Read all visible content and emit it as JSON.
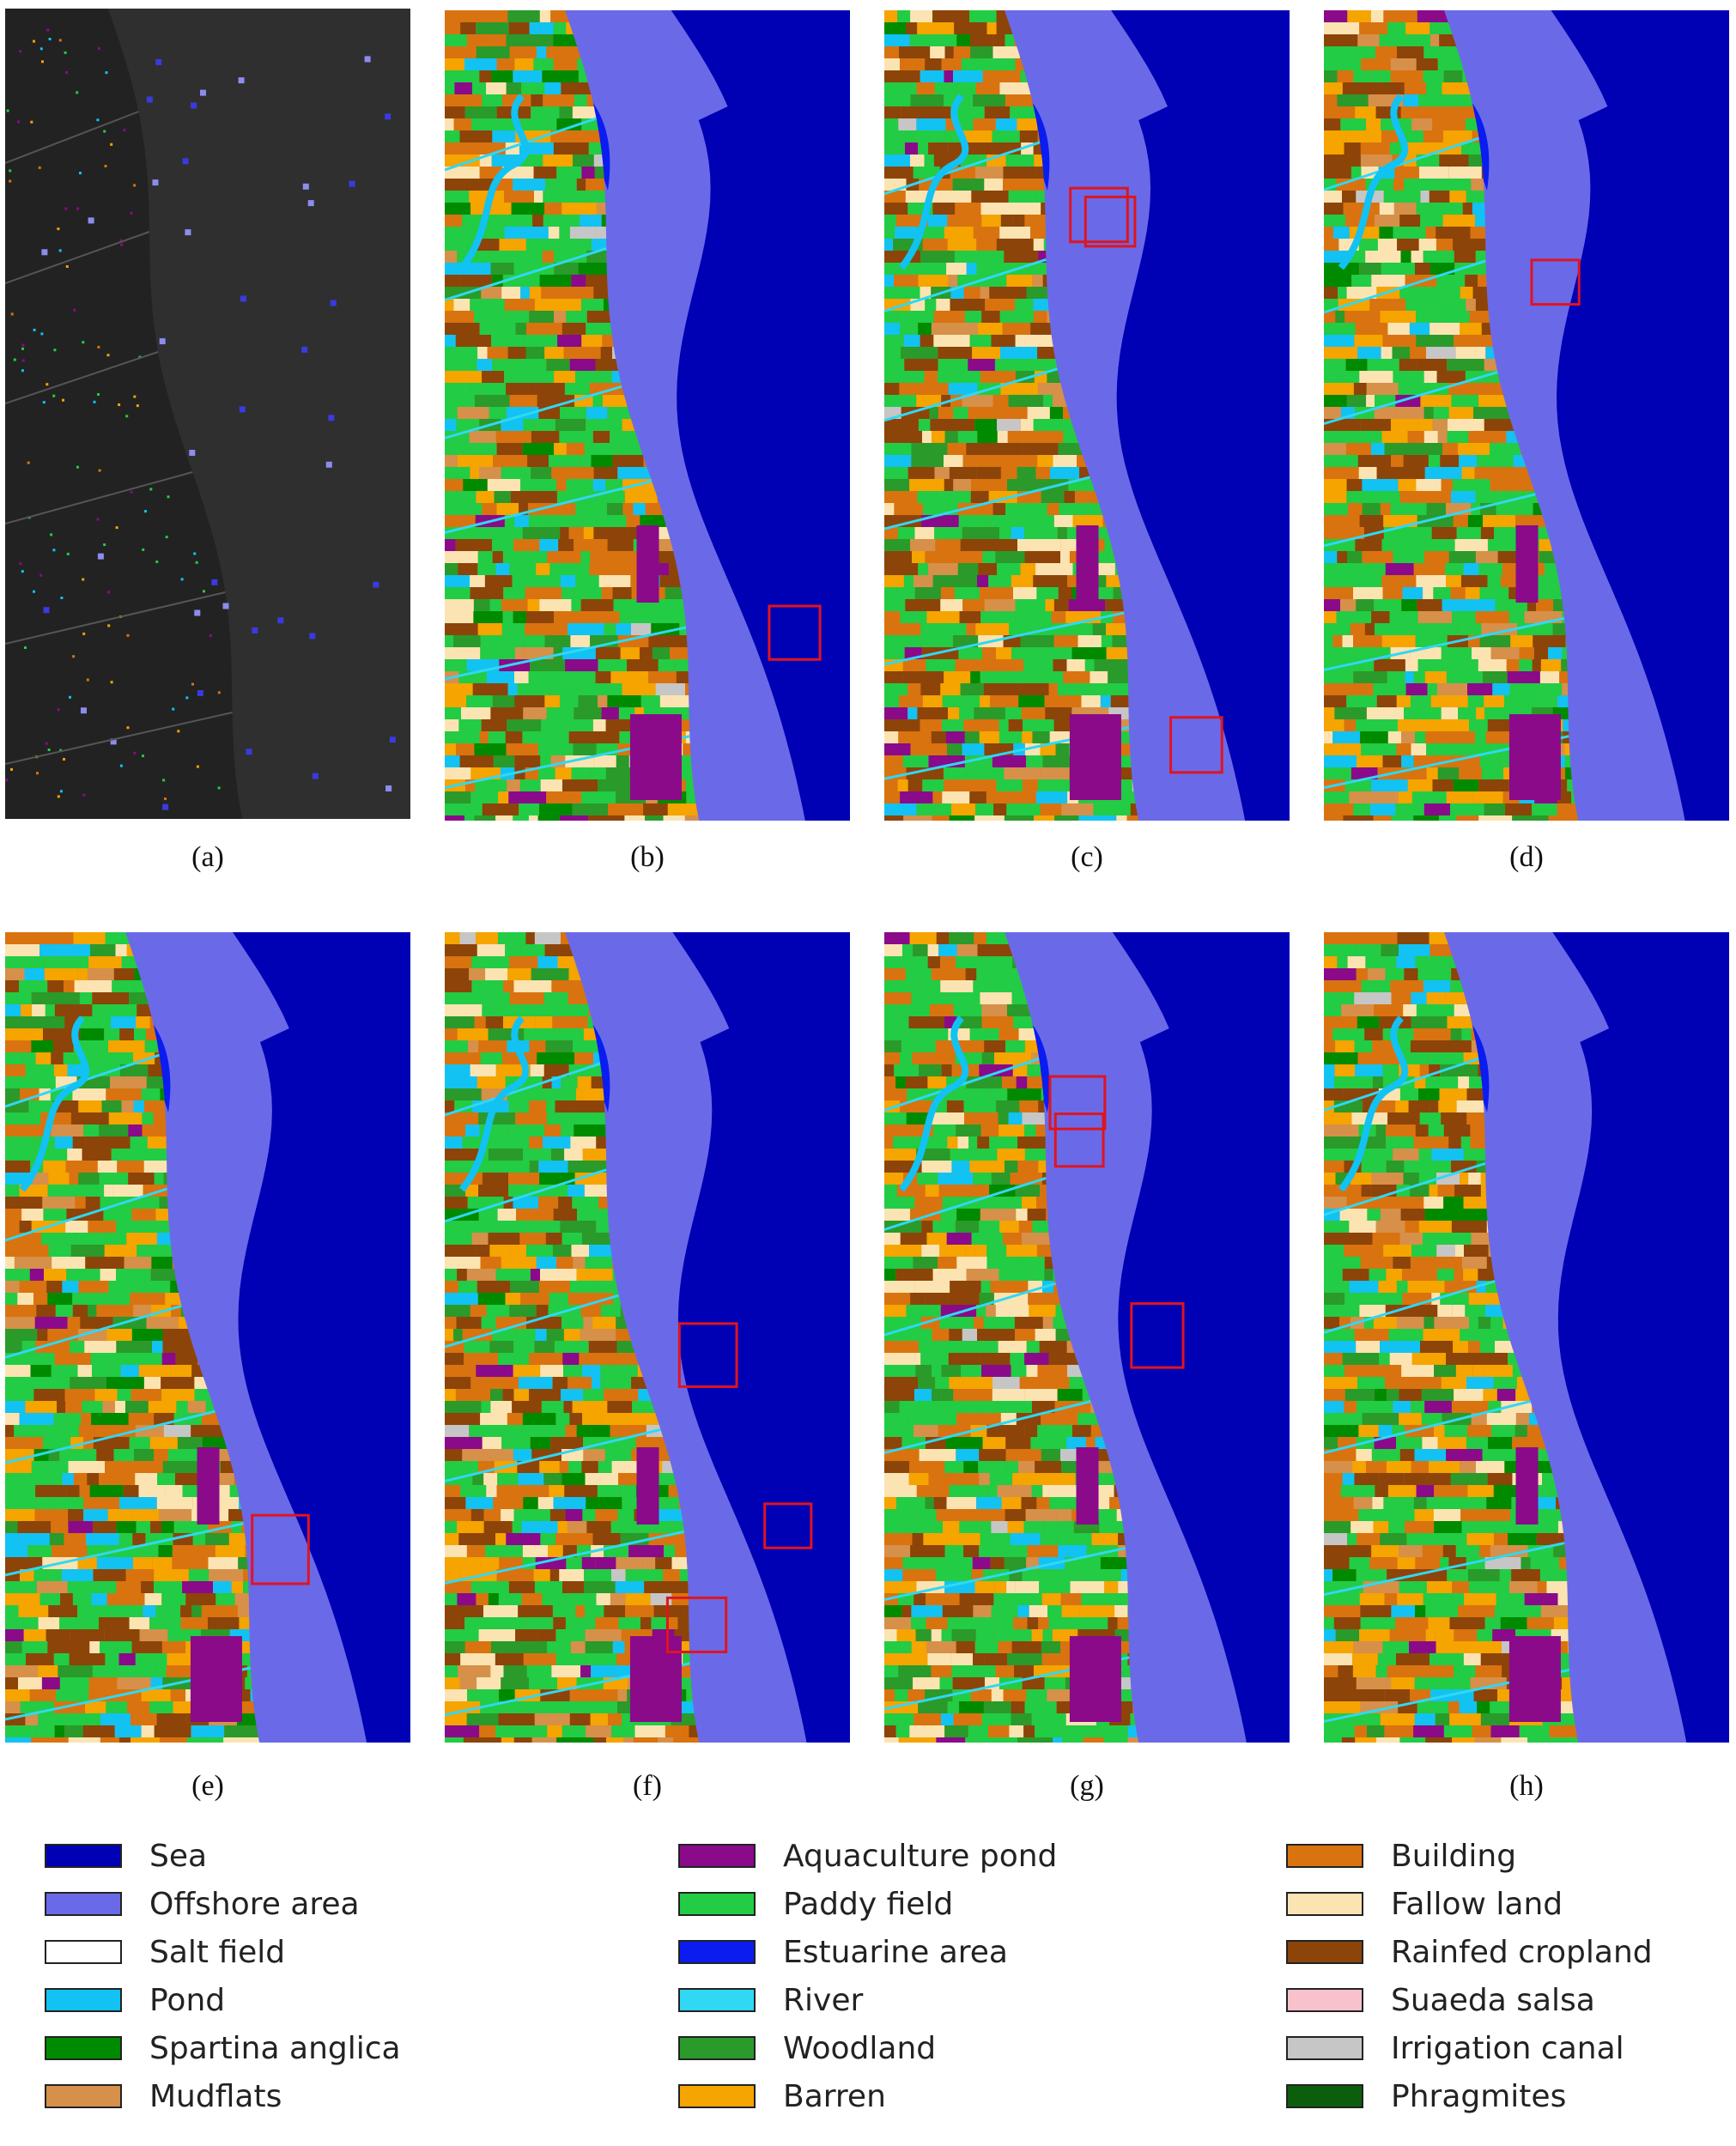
{
  "figure": {
    "panels": [
      {
        "id": "a",
        "caption": "(a)",
        "kind": "sample"
      },
      {
        "id": "b",
        "caption": "(b)",
        "kind": "map"
      },
      {
        "id": "c",
        "caption": "(c)",
        "kind": "map"
      },
      {
        "id": "d",
        "caption": "(d)",
        "kind": "map"
      },
      {
        "id": "e",
        "caption": "(e)",
        "kind": "map"
      },
      {
        "id": "f",
        "caption": "(f)",
        "kind": "map"
      },
      {
        "id": "g",
        "caption": "(g)",
        "kind": "map"
      },
      {
        "id": "h",
        "caption": "(h)",
        "kind": "map"
      }
    ]
  },
  "legend": {
    "columns": [
      [
        {
          "label": "Sea",
          "color": "#0000b4"
        },
        {
          "label": "Offshore area",
          "color": "#6a6ae8"
        },
        {
          "label": "Salt field",
          "color": "#ffffff"
        },
        {
          "label": "Pond",
          "color": "#12c2f2"
        },
        {
          "label": "Spartina anglica",
          "color": "#008a00"
        },
        {
          "label": "Mudflats",
          "color": "#d6904a"
        }
      ],
      [
        {
          "label": "Aquaculture pond",
          "color": "#8a0a8a"
        },
        {
          "label": "Paddy field",
          "color": "#22cc44"
        },
        {
          "label": "Estuarine area",
          "color": "#0a1cf0"
        },
        {
          "label": "River",
          "color": "#30d8f4"
        },
        {
          "label": "Woodland",
          "color": "#2a9a2a"
        },
        {
          "label": "Barren",
          "color": "#f5a400"
        }
      ],
      [
        {
          "label": "Building",
          "color": "#d9730f"
        },
        {
          "label": "Fallow land",
          "color": "#fbe4b2"
        },
        {
          "label": "Rainfed cropland",
          "color": "#8c4409"
        },
        {
          "label": "Suaeda salsa",
          "color": "#f8c2cc"
        },
        {
          "label": "Irrigation canal",
          "color": "#c6c6c6"
        },
        {
          "label": "Phragmites",
          "color": "#0c5e0c"
        }
      ]
    ]
  }
}
